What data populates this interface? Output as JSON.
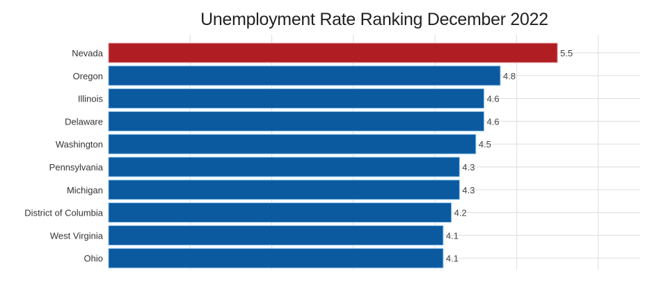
{
  "chart_data": {
    "type": "bar",
    "orientation": "horizontal",
    "title": "Unemployment Rate Ranking December 2022",
    "xlabel": "",
    "ylabel": "",
    "categories": [
      "Nevada",
      "Oregon",
      "Illinois",
      "Delaware",
      "Washington",
      "Pennsylvania",
      "Michigan",
      "District of Columbia",
      "West Virginia",
      "Ohio"
    ],
    "values": [
      5.5,
      4.8,
      4.6,
      4.6,
      4.5,
      4.3,
      4.3,
      4.2,
      4.1,
      4.1
    ],
    "value_labels": [
      "5.5",
      "4.8",
      "4.6",
      "4.6",
      "4.5",
      "4.3",
      "4.3",
      "4.2",
      "4.1",
      "4.1"
    ],
    "xlim": [
      0,
      6.5
    ],
    "x_gridlines": [
      1,
      2,
      3,
      4,
      5,
      6
    ],
    "x_tick_labels_shown": false,
    "grid": true,
    "legend": "none",
    "highlight_index": 0,
    "colors": {
      "highlight": "#B01E23",
      "default": "#0B5AA0",
      "default_outline": "#8EC3EA"
    }
  }
}
